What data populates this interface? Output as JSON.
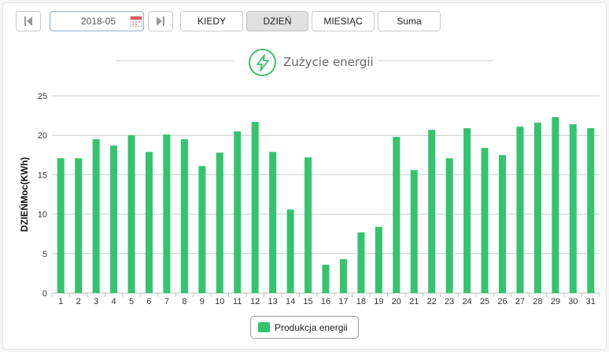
{
  "toolbar": {
    "prev_icon": "skip-previous-icon",
    "date_value": "2018-05",
    "calendar_icon": "calendar-icon",
    "next_icon": "skip-next-icon",
    "buttons": [
      {
        "label": "KIEDY",
        "active": false
      },
      {
        "label": "DZIEŃ",
        "active": true
      },
      {
        "label": "MIESIĄC",
        "active": false
      },
      {
        "label": "Suma",
        "active": false
      }
    ]
  },
  "title": {
    "icon": "lightning-bolt-icon",
    "text": "Zużycie energii"
  },
  "colors": {
    "bar": "#33c46d",
    "accent": "#3fbf6a",
    "grid": "#cccccc",
    "active_button": "#e0e0e0"
  },
  "chart_data": {
    "type": "bar",
    "ylabel": "DZIEŃMoc(KWh)",
    "ylim": [
      0,
      25
    ],
    "yticks": [
      0,
      5,
      10,
      15,
      20,
      25
    ],
    "grid": true,
    "legend_position": "bottom-center",
    "categories": [
      "1",
      "2",
      "3",
      "4",
      "5",
      "6",
      "7",
      "8",
      "9",
      "10",
      "11",
      "12",
      "13",
      "14",
      "15",
      "16",
      "17",
      "18",
      "19",
      "20",
      "21",
      "22",
      "23",
      "24",
      "25",
      "26",
      "27",
      "28",
      "29",
      "30",
      "31"
    ],
    "series": [
      {
        "name": "Produkcja energii",
        "values": [
          17.1,
          17.1,
          19.5,
          18.7,
          20.0,
          17.9,
          20.1,
          19.5,
          16.1,
          17.8,
          20.5,
          21.7,
          17.9,
          10.6,
          17.2,
          3.6,
          4.3,
          7.7,
          8.4,
          19.8,
          15.6,
          20.7,
          17.1,
          20.9,
          18.4,
          17.5,
          21.1,
          21.6,
          22.3,
          21.4,
          20.9
        ]
      }
    ]
  }
}
